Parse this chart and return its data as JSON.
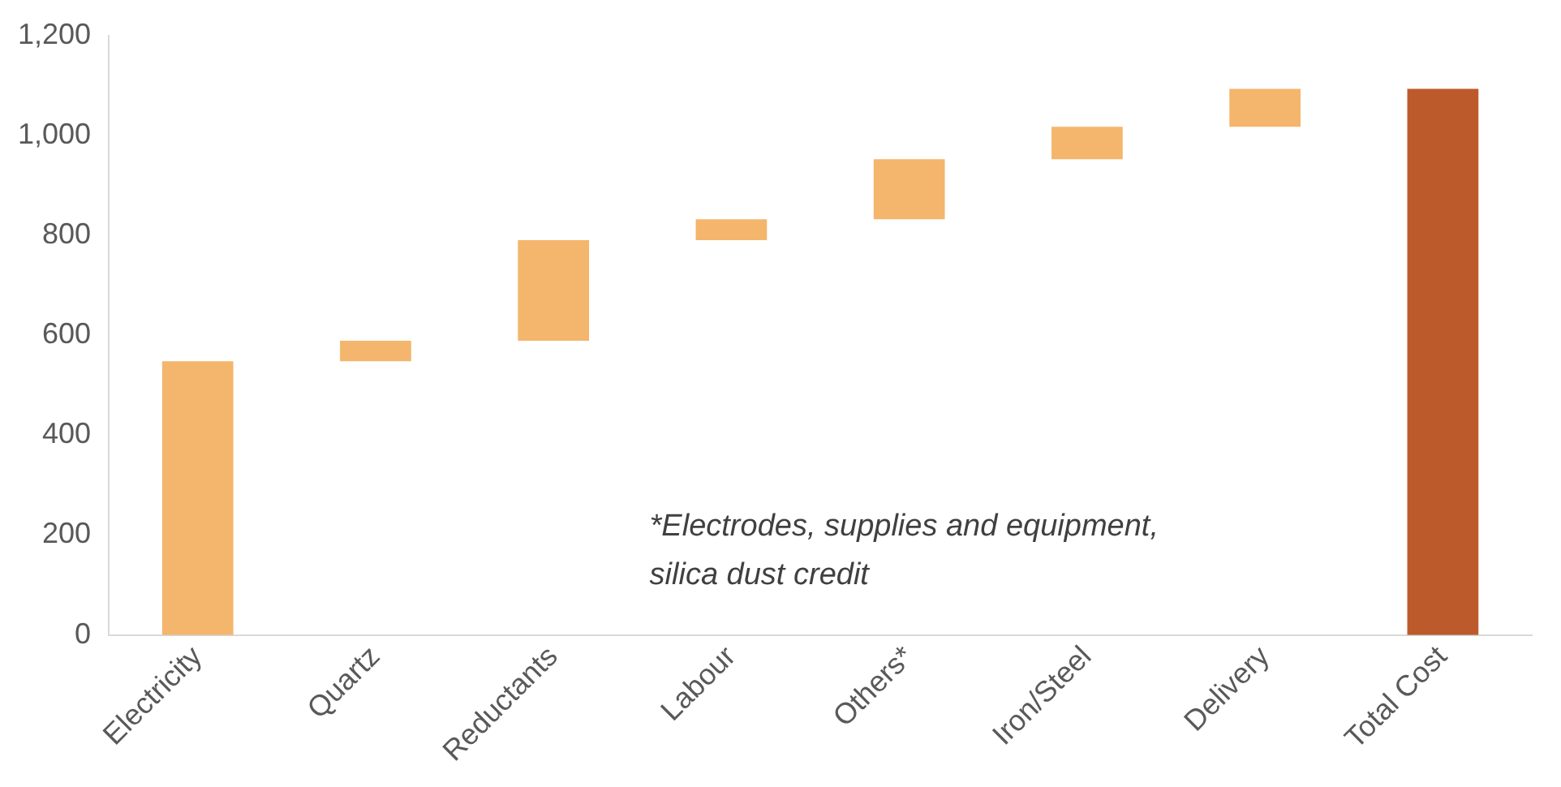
{
  "chart_data": {
    "type": "bar",
    "categories": [
      "Electricity",
      "Quartz",
      "Reductants",
      "Labour",
      "Others*",
      "Iron/Steel",
      "Delivery",
      "Total Cost"
    ],
    "values": [
      548,
      41,
      201,
      42,
      120,
      65,
      76,
      1093
    ],
    "base": [
      0,
      548,
      589,
      790,
      832,
      952,
      1017,
      0
    ],
    "colors": [
      "#f4b56c",
      "#f4b56c",
      "#f4b56c",
      "#f4b56c",
      "#f4b56c",
      "#f4b56c",
      "#f4b56c",
      "#bc5a2b"
    ],
    "ylim": [
      0,
      1200
    ],
    "yticks": [
      0,
      {
        "value": 200,
        "label": "200"
      },
      {
        "value": 400,
        "label": "400"
      },
      {
        "value": 600,
        "label": "600"
      },
      {
        "value": 800,
        "label": "800"
      },
      {
        "value": 1000,
        "label": "1,000"
      },
      {
        "value": 1200,
        "label": "1,200"
      }
    ],
    "annotations": [
      "*Electrodes, supplies and equipment,\nsilica dust credit"
    ],
    "grid": false,
    "legend": false
  }
}
